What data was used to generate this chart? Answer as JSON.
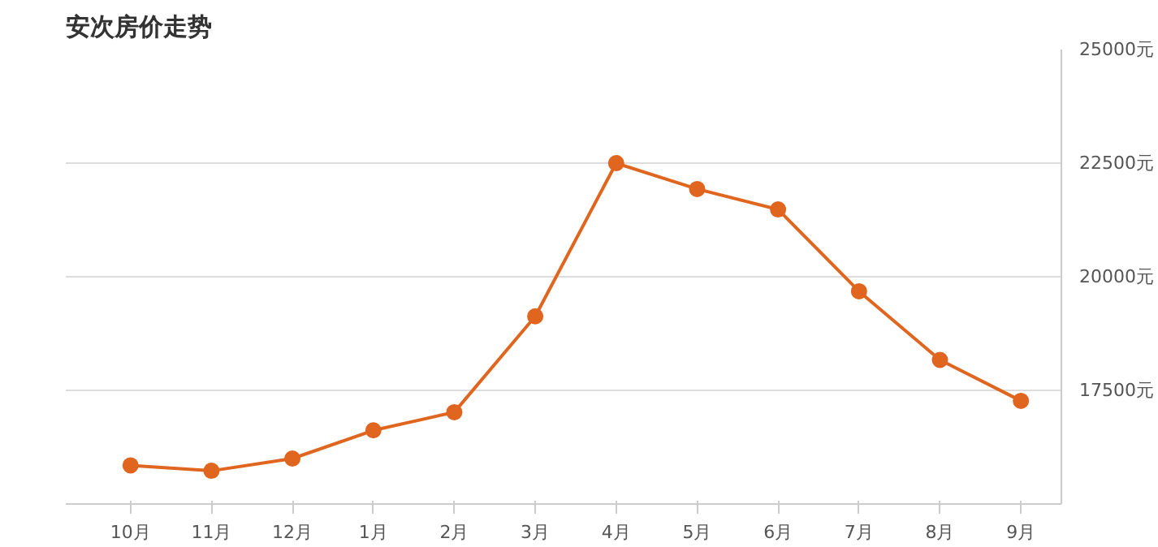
{
  "chart_data": {
    "type": "line",
    "title": "安次房价走势",
    "categories": [
      "10月",
      "11月",
      "12月",
      "1月",
      "2月",
      "3月",
      "4月",
      "5月",
      "6月",
      "7月",
      "8月",
      "9月"
    ],
    "series": [
      {
        "color": "#e0651f",
        "values": [
          15850,
          15730,
          16000,
          16620,
          17020,
          19130,
          22500,
          21930,
          21480,
          19680,
          18170,
          17270
        ]
      }
    ],
    "ylim": [
      15000,
      25000
    ],
    "yticks": [
      {
        "value": 17500,
        "label": "17500元"
      },
      {
        "value": 20000,
        "label": "20000元"
      },
      {
        "value": 22500,
        "label": "22500元"
      },
      {
        "value": 25000,
        "label": "25000元"
      }
    ],
    "grid": "y",
    "marker": "circle",
    "line_style": "solid"
  }
}
